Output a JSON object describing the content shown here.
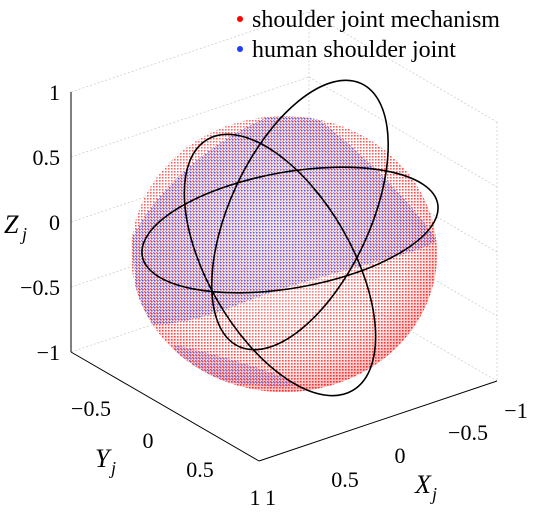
{
  "chart_data": {
    "type": "scatter",
    "title": "",
    "projection": "3d",
    "grid": true,
    "legend_position": "top-right",
    "axes": {
      "x": {
        "label": "X",
        "subscript": "j",
        "ticks": [
          1,
          0.5,
          0,
          -0.5,
          -1
        ],
        "tick_labels": [
          "1",
          "0.5",
          "0",
          "−0.5",
          "−1"
        ],
        "lim": [
          -1,
          1
        ]
      },
      "y": {
        "label": "Y",
        "subscript": "j",
        "ticks": [
          -0.5,
          0,
          0.5,
          1
        ],
        "tick_labels": [
          "−0.5",
          "0",
          "0.5",
          "1"
        ],
        "lim": [
          -1,
          1
        ]
      },
      "z": {
        "label": "Z",
        "subscript": "j",
        "ticks": [
          1,
          0.5,
          0,
          -0.5,
          -1
        ],
        "tick_labels": [
          "1",
          "0.5",
          "0",
          "−0.5",
          "−1"
        ],
        "lim": [
          -1,
          1
        ]
      }
    },
    "series": [
      {
        "name": "shoulder joint mechanism",
        "color": "#ff0000",
        "marker": "dot",
        "surface": "unit sphere"
      },
      {
        "name": "human shoulder joint",
        "color": "#0000ff",
        "marker": "dot",
        "surface": "unit sphere, partial band"
      }
    ],
    "reference_circles": {
      "color": "#000000",
      "description": "great circles on unit sphere"
    }
  }
}
